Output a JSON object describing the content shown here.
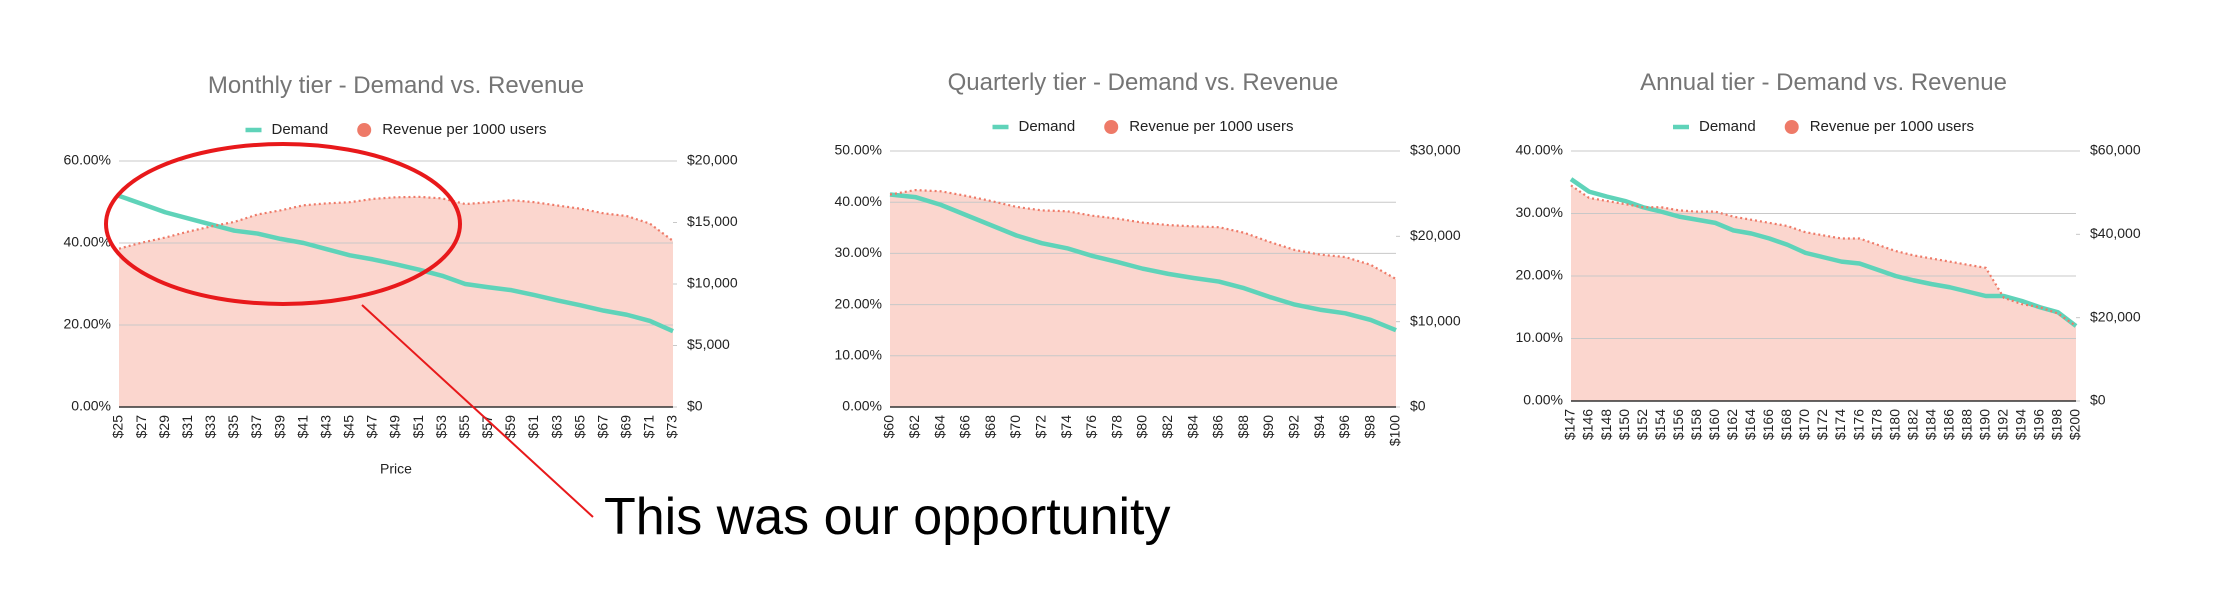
{
  "chart_data": [
    {
      "type": "line",
      "title": "Monthly tier - Demand vs. Revenue",
      "x_label": "Price",
      "annotation": "This was our opportunity",
      "categories": [
        "$25",
        "$27",
        "$29",
        "$31",
        "$33",
        "$35",
        "$37",
        "$39",
        "$41",
        "$43",
        "$45",
        "$47",
        "$49",
        "$51",
        "$53",
        "$55",
        "$57",
        "$59",
        "$61",
        "$63",
        "$65",
        "$67",
        "$69",
        "$71",
        "$73"
      ],
      "series": [
        {
          "name": "Demand",
          "color": "#5fd3b9",
          "values": [
            51.5,
            49.5,
            47.5,
            46,
            44.5,
            43,
            42.3,
            41,
            40,
            38.5,
            37,
            36,
            34.8,
            33.5,
            32,
            30,
            29.2,
            28.5,
            27.3,
            26,
            24.8,
            23.5,
            22.5,
            21,
            18.5
          ]
        },
        {
          "name": "Revenue per 1000 users",
          "color": "#ee7a68",
          "fill": "#fbd6ce",
          "axis": "y2",
          "values": [
            12875,
            13365,
            13775,
            14260,
            14685,
            15050,
            15650,
            15990,
            16400,
            16555,
            16650,
            16920,
            17050,
            17085,
            16960,
            16500,
            16640,
            16815,
            16650,
            16380,
            16120,
            15745,
            15525,
            14910,
            13505
          ]
        }
      ],
      "ylim": [
        0,
        60
      ],
      "yticks": [
        {
          "value": 0,
          "label": "0.00%"
        },
        {
          "value": 20,
          "label": "20.00%"
        },
        {
          "value": 40,
          "label": "40.00%"
        },
        {
          "value": 60,
          "label": "60.00%"
        }
      ],
      "y2lim": [
        0,
        20000
      ],
      "y2ticks": [
        {
          "value": 0,
          "label": "$0"
        },
        {
          "value": 5000,
          "label": "$5,000"
        },
        {
          "value": 10000,
          "label": "$10,000"
        },
        {
          "value": 15000,
          "label": "$15,000"
        },
        {
          "value": 20000,
          "label": "$20,000"
        }
      ],
      "grid": true
    },
    {
      "type": "line",
      "title": "Quarterly tier - Demand vs. Revenue",
      "categories": [
        "$60",
        "$62",
        "$64",
        "$66",
        "$68",
        "$70",
        "$72",
        "$74",
        "$76",
        "$78",
        "$80",
        "$82",
        "$84",
        "$86",
        "$88",
        "$90",
        "$92",
        "$94",
        "$96",
        "$98",
        "$100"
      ],
      "series": [
        {
          "name": "Demand",
          "color": "#5fd3b9",
          "values": [
            41.5,
            41,
            39.5,
            37.5,
            35.5,
            33.5,
            32,
            31,
            29.5,
            28.3,
            27,
            26,
            25.2,
            24.5,
            23.2,
            21.5,
            20,
            19,
            18.3,
            17,
            15
          ]
        },
        {
          "name": "Revenue per 1000 users",
          "color": "#ee7a68",
          "fill": "#fbd6ce",
          "axis": "y2",
          "values": [
            24900,
            25420,
            25280,
            24750,
            24140,
            23450,
            23040,
            22940,
            22420,
            22070,
            21600,
            21320,
            21170,
            21070,
            20420,
            19350,
            18400,
            17860,
            17570,
            16660,
            15000
          ]
        }
      ],
      "ylim": [
        0,
        50
      ],
      "yticks": [
        {
          "value": 0,
          "label": "0.00%"
        },
        {
          "value": 10,
          "label": "10.00%"
        },
        {
          "value": 20,
          "label": "20.00%"
        },
        {
          "value": 30,
          "label": "30.00%"
        },
        {
          "value": 40,
          "label": "40.00%"
        },
        {
          "value": 50,
          "label": "50.00%"
        }
      ],
      "y2lim": [
        0,
        30000
      ],
      "y2ticks": [
        {
          "value": 0,
          "label": "$0"
        },
        {
          "value": 10000,
          "label": "$10,000"
        },
        {
          "value": 20000,
          "label": "$20,000"
        },
        {
          "value": 30000,
          "label": "$30,000"
        }
      ],
      "grid": true
    },
    {
      "type": "line",
      "title": "Annual tier - Demand vs. Revenue",
      "categories": [
        "$147",
        "$146",
        "$148",
        "$150",
        "$152",
        "$154",
        "$156",
        "$158",
        "$160",
        "$162",
        "$164",
        "$166",
        "$168",
        "$170",
        "$172",
        "$174",
        "$176",
        "$178",
        "$180",
        "$182",
        "$184",
        "$186",
        "$188",
        "$190",
        "$192",
        "$194",
        "$196",
        "$198",
        "$200"
      ],
      "series": [
        {
          "name": "Demand",
          "color": "#5fd3b9",
          "values": [
            35.5,
            33.5,
            32.7,
            32,
            31,
            30.3,
            29.5,
            29,
            28.5,
            27.3,
            26.8,
            26,
            25,
            23.7,
            23,
            22.3,
            22,
            21,
            20,
            19.3,
            18.7,
            18.2,
            17.5,
            16.8,
            16.8,
            16,
            15,
            14.2,
            12
          ]
        },
        {
          "name": "Revenue per 1000 users",
          "color": "#ee7a68",
          "fill": "#fbd6ce",
          "axis": "y2",
          "values": [
            51750,
            48750,
            48000,
            47250,
            46500,
            46500,
            45750,
            45450,
            45450,
            44250,
            43500,
            42750,
            42000,
            40500,
            39750,
            39000,
            39000,
            37500,
            36000,
            34950,
            34200,
            33450,
            32700,
            31950,
            24750,
            23250,
            22500,
            21000,
            18000
          ]
        }
      ],
      "ylim": [
        0,
        40
      ],
      "yticks": [
        {
          "value": 0,
          "label": "0.00%"
        },
        {
          "value": 10,
          "label": "10.00%"
        },
        {
          "value": 20,
          "label": "20.00%"
        },
        {
          "value": 30,
          "label": "30.00%"
        },
        {
          "value": 40,
          "label": "40.00%"
        }
      ],
      "y2lim": [
        0,
        60000
      ],
      "y2ticks": [
        {
          "value": 0,
          "label": "$0"
        },
        {
          "value": 20000,
          "label": "$20,000"
        },
        {
          "value": 40000,
          "label": "$40,000"
        },
        {
          "value": 60000,
          "label": "$60,000"
        }
      ],
      "grid": true
    }
  ]
}
